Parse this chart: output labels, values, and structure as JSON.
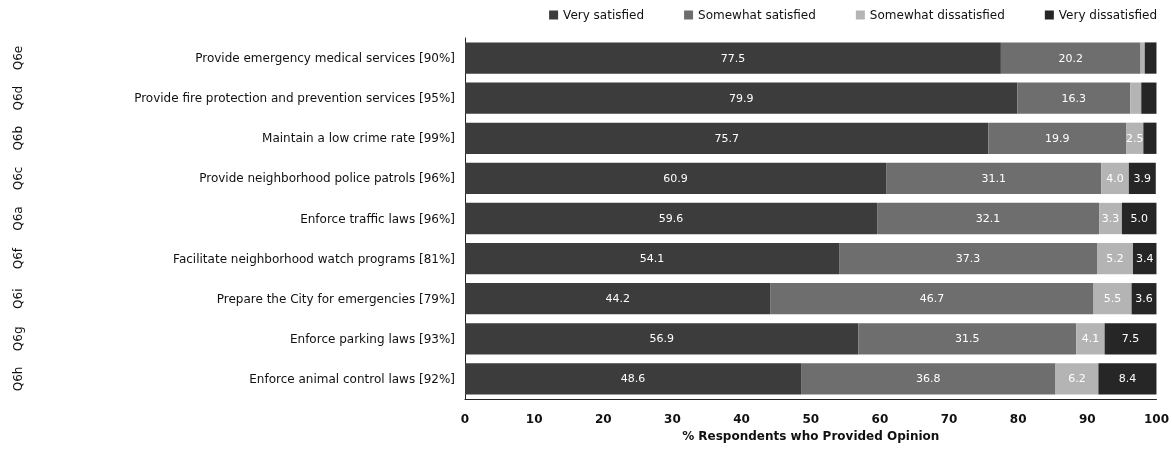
{
  "chart_data": {
    "type": "bar",
    "orientation": "horizontal",
    "stacked": true,
    "categories": [
      "Provide emergency medical services [90%]",
      "Provide fire protection and prevention services [95%]",
      "Maintain a low crime rate [99%]",
      "Provide neighborhood police patrols [96%]",
      "Enforce traffic laws [96%]",
      "Facilitate neighborhood watch programs [81%]",
      "Prepare the City for emergencies [79%]",
      "Enforce parking laws [93%]",
      "Enforce animal control laws [92%]"
    ],
    "series": [
      {
        "name": "Very satisfied",
        "color": "#3c3c3c",
        "values": [
          77.5,
          79.9,
          75.7,
          60.9,
          59.6,
          54.1,
          44.2,
          56.9,
          48.6
        ],
        "value_labels": [
          "77.5",
          "79.9",
          "75.7",
          "60.9",
          "59.6",
          "54.1",
          "44.2",
          "56.9",
          "48.6"
        ]
      },
      {
        "name": "Somewhat satisfied",
        "color": "#6e6e6e",
        "values": [
          20.2,
          16.3,
          19.9,
          31.1,
          32.1,
          37.3,
          46.7,
          31.5,
          36.8
        ],
        "value_labels": [
          "20.2",
          "16.3",
          "19.9",
          "31.1",
          "32.1",
          "37.3",
          "46.7",
          "31.5",
          "36.8"
        ]
      },
      {
        "name": "Somewhat dissatisfied",
        "color": "#b4b4b4",
        "values": [
          0.6,
          1.6,
          2.5,
          4.0,
          3.3,
          5.2,
          5.5,
          4.1,
          6.2
        ],
        "value_labels": [
          null,
          null,
          "2.5",
          "4.0",
          "3.3",
          "5.2",
          "5.5",
          "4.1",
          "6.2"
        ]
      },
      {
        "name": "Very dissatisfied",
        "color": "#262626",
        "values": [
          1.7,
          2.2,
          1.9,
          3.9,
          5.0,
          3.4,
          3.6,
          7.5,
          8.4
        ],
        "value_labels": [
          null,
          null,
          null,
          "3.9",
          "5.0",
          "3.4",
          "3.6",
          "7.5",
          "8.4"
        ]
      }
    ],
    "xlabel": "% Respondents who Provided Opinion",
    "xlim": [
      0,
      100
    ],
    "xticks": [
      0,
      10,
      20,
      30,
      40,
      50,
      60,
      70,
      80,
      90,
      100
    ],
    "annotations": [
      "Q6e",
      "Q6d",
      "Q6b",
      "Q6c",
      "Q6a",
      "Q6f",
      "Q6i",
      "Q6g",
      "Q6h"
    ],
    "legend": "top right",
    "grid": false
  }
}
